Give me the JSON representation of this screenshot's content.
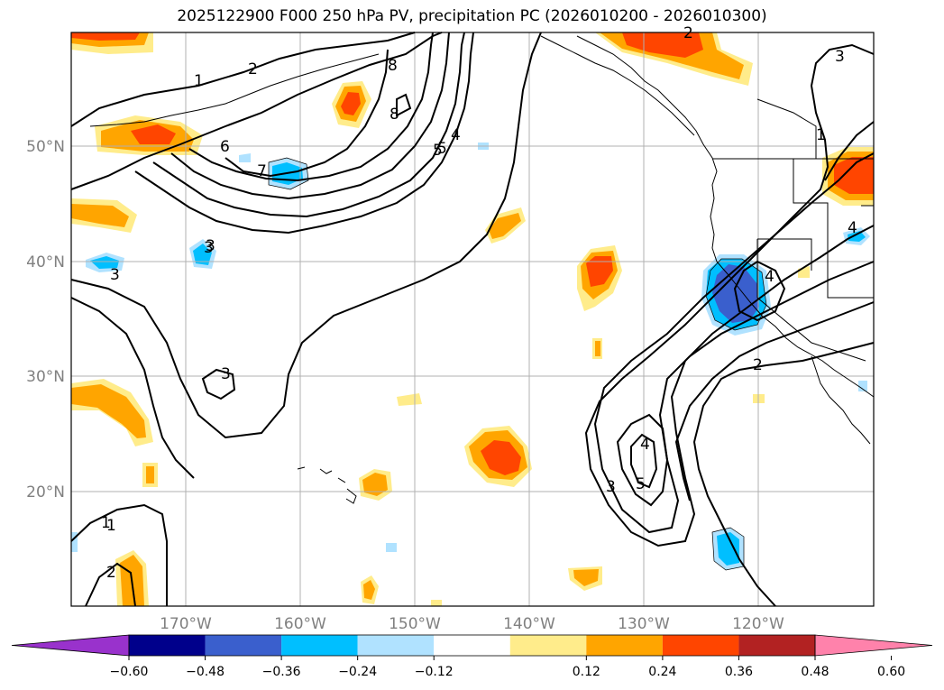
{
  "title": "2025122900 F000 250 hPa PV, precipitation PC (2026010200 - 2026010300)",
  "lat_labels": [
    "50°N",
    "40°N",
    "30°N",
    "20°N"
  ],
  "lon_labels": [
    "170°W",
    "160°W",
    "150°W",
    "140°W",
    "130°W",
    "120°W"
  ],
  "colorbar": {
    "ticks": [
      "−0.60",
      "−0.48",
      "−0.36",
      "−0.24",
      "−0.12",
      "0.12",
      "0.24",
      "0.36",
      "0.48",
      "0.60"
    ],
    "colors": [
      "#9932cc",
      "#00008b",
      "#3a5fcd",
      "#00bfff",
      "#b0e2ff",
      "#ffffff",
      "#ffec8b",
      "#ffa500",
      "#ff4500",
      "#b22222",
      "#ff82ab"
    ]
  },
  "contour_labels": [
    "1",
    "2",
    "3",
    "4",
    "5",
    "6",
    "7",
    "8",
    "1",
    "2",
    "3",
    "4",
    "5",
    "3",
    "3",
    "3",
    "1",
    "2",
    "2",
    "4",
    "1",
    "3",
    "4",
    "5",
    "8"
  ],
  "colors": {
    "grid": "#b0b0b0",
    "contour": "#000000",
    "coast": "#000000"
  }
}
